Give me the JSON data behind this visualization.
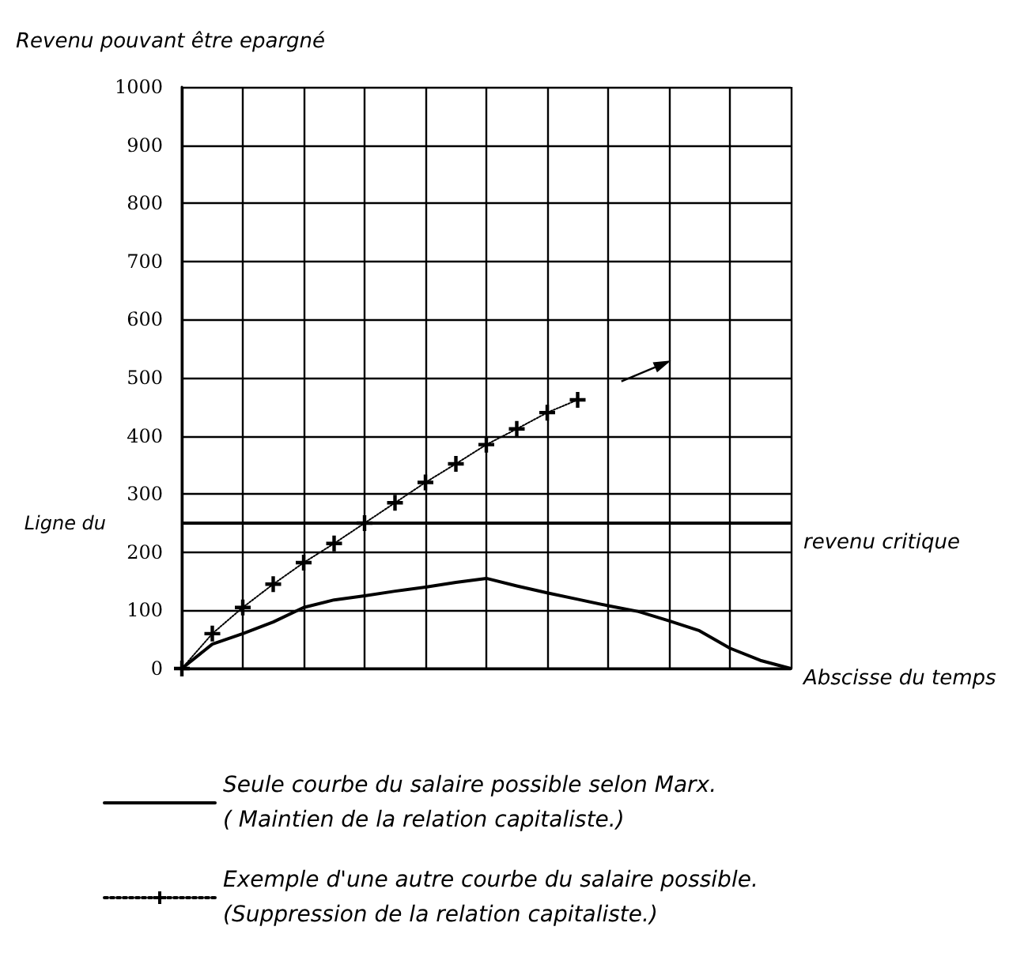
{
  "chart_data": {
    "type": "line",
    "ylabel": "Revenu pouvant être epargné",
    "xlabel": "Abscisse du temps",
    "categories": [
      null,
      null,
      null,
      null,
      null,
      null,
      null,
      null,
      null,
      null,
      null,
      null,
      null,
      null,
      null,
      null,
      null,
      null,
      null,
      null,
      null
    ],
    "ylim": [
      0,
      1000
    ],
    "yticks": [
      0,
      100,
      200,
      300,
      400,
      500,
      600,
      700,
      800,
      900,
      1000
    ],
    "tick_labels": "y",
    "grid": true,
    "legend": "bottom",
    "ref_lines": [
      {
        "axis": "y",
        "value": 250,
        "label": "Ligne du revenu critique",
        "color": "#000000"
      }
    ],
    "series": [
      {
        "name": "Seule courbe du salaire possible selon Marx.\n( Maintien de la relation capitaliste.)",
        "color": "#000000",
        "marker": "none",
        "line_style": "solid",
        "values": [
          0,
          42,
          60,
          80,
          105,
          118,
          125,
          133,
          140,
          148,
          155,
          142,
          130,
          119,
          108,
          98,
          82,
          65,
          35,
          14,
          0
        ]
      },
      {
        "name": "Exemple d'une autre courbe du salaire possible.\n(Suppression de la relation capitaliste.)",
        "color": "#000000",
        "marker": "cross",
        "line_style": "dotted",
        "values": [
          0,
          60,
          105,
          145,
          182,
          215,
          250,
          285,
          320,
          352,
          385,
          412,
          440,
          462,
          null,
          null,
          null,
          null,
          null,
          null,
          null
        ]
      }
    ]
  }
}
